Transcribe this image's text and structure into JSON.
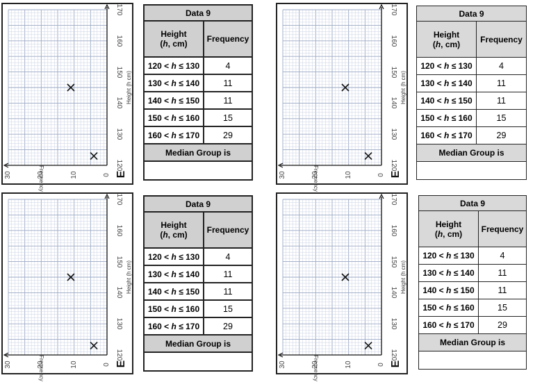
{
  "worksheet": {
    "table": {
      "title": "Data 9",
      "header_height": "Height",
      "header_unit_prefix": "(",
      "header_unit_var": "h",
      "header_unit_suffix": ", cm)",
      "header_frequency": "Frequency",
      "rows": [
        {
          "range": "120 < h ≤ 130",
          "lower": "120 < ",
          "var": "h",
          "upper": " ≤ 130",
          "frequency": "4"
        },
        {
          "range": "130 < h ≤ 140",
          "lower": "130 < ",
          "var": "h",
          "upper": " ≤ 140",
          "frequency": "11"
        },
        {
          "range": "140 < h ≤ 150",
          "lower": "140 < ",
          "var": "h",
          "upper": " ≤ 150",
          "frequency": "11"
        },
        {
          "range": "150 < h ≤ 160",
          "lower": "150 < ",
          "var": "h",
          "upper": " ≤ 160",
          "frequency": "15"
        },
        {
          "range": "160 < h ≤ 170",
          "lower": "160 < ",
          "var": "h",
          "upper": " ≤ 170",
          "frequency": "29"
        }
      ],
      "median_label": "Median Group is",
      "median_answer": ""
    },
    "graph": {
      "panel_letter": "E",
      "height_axis_title": "Height (h cm)",
      "frequency_axis_title": "Frequency",
      "height_ticks": [
        "120",
        "130",
        "140",
        "150",
        "160",
        "170"
      ],
      "frequency_ticks": [
        "0",
        "10",
        "20",
        "30"
      ],
      "marker": "×",
      "plotted_points": [
        {
          "frequency": 11,
          "height": 145
        },
        {
          "frequency": 4,
          "height": 123
        }
      ]
    }
  }
}
